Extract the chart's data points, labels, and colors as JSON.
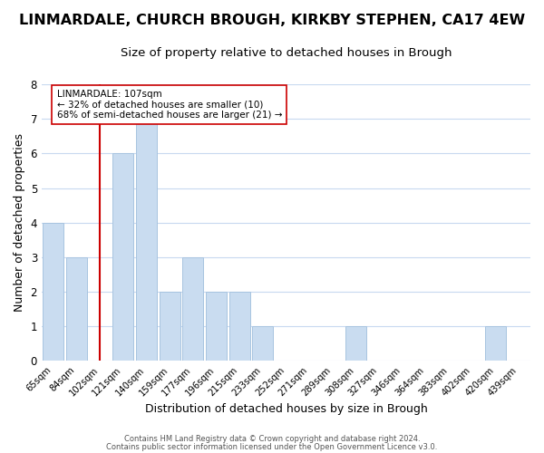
{
  "title": "LINMARDALE, CHURCH BROUGH, KIRKBY STEPHEN, CA17 4EW",
  "subtitle": "Size of property relative to detached houses in Brough",
  "xlabel": "Distribution of detached houses by size in Brough",
  "ylabel": "Number of detached properties",
  "bar_labels": [
    "65sqm",
    "84sqm",
    "102sqm",
    "121sqm",
    "140sqm",
    "159sqm",
    "177sqm",
    "196sqm",
    "215sqm",
    "233sqm",
    "252sqm",
    "271sqm",
    "289sqm",
    "308sqm",
    "327sqm",
    "346sqm",
    "364sqm",
    "383sqm",
    "402sqm",
    "420sqm",
    "439sqm"
  ],
  "bar_values": [
    4,
    3,
    0,
    6,
    7,
    2,
    3,
    2,
    2,
    1,
    0,
    0,
    0,
    1,
    0,
    0,
    0,
    0,
    0,
    1,
    0
  ],
  "bar_color": "#c9dcf0",
  "bar_edge_color": "#a8c4e0",
  "vline_x": 2,
  "vline_color": "#cc0000",
  "annotation_text": "LINMARDALE: 107sqm\n← 32% of detached houses are smaller (10)\n68% of semi-detached houses are larger (21) →",
  "annotation_box_color": "#ffffff",
  "annotation_box_edge": "#cc0000",
  "ylim": [
    0,
    8
  ],
  "yticks": [
    0,
    1,
    2,
    3,
    4,
    5,
    6,
    7,
    8
  ],
  "title_fontsize": 11.5,
  "subtitle_fontsize": 9.5,
  "xlabel_fontsize": 9,
  "ylabel_fontsize": 9,
  "footer_line1": "Contains HM Land Registry data © Crown copyright and database right 2024.",
  "footer_line2": "Contains public sector information licensed under the Open Government Licence v3.0.",
  "bg_color": "#ffffff",
  "grid_color": "#c8d9f0"
}
